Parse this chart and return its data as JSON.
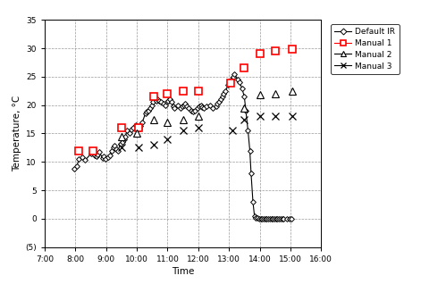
{
  "title": "",
  "xlabel": "Time",
  "ylabel": "Temperature, °C",
  "xlim": [
    7.0,
    16.0
  ],
  "ylim": [
    -5,
    35
  ],
  "yticks": [
    -5,
    0,
    5,
    10,
    15,
    20,
    25,
    30,
    35
  ],
  "ytick_labels": [
    "(5)",
    "0",
    "5",
    "10",
    "15",
    "20",
    "25",
    "30",
    "35"
  ],
  "xticks": [
    7.0,
    8.0,
    9.0,
    10.0,
    11.0,
    12.0,
    13.0,
    14.0,
    15.0,
    16.0
  ],
  "xtick_labels": [
    "7:00",
    "8:00",
    "9:00",
    "10:00",
    "11:00",
    "12:00",
    "13:00",
    "14:00",
    "15:00",
    "16:00"
  ],
  "ir_x": [
    7.95,
    8.05,
    8.12,
    8.22,
    8.32,
    8.52,
    8.62,
    8.68,
    8.73,
    8.78,
    8.88,
    8.93,
    8.98,
    9.08,
    9.13,
    9.18,
    9.23,
    9.28,
    9.33,
    9.38,
    9.48,
    9.53,
    9.58,
    9.63,
    9.68,
    9.78,
    9.83,
    9.88,
    9.98,
    10.03,
    10.08,
    10.13,
    10.18,
    10.28,
    10.33,
    10.38,
    10.43,
    10.48,
    10.53,
    10.63,
    10.68,
    10.73,
    10.78,
    10.88,
    10.93,
    10.98,
    11.03,
    11.08,
    11.13,
    11.18,
    11.23,
    11.33,
    11.43,
    11.48,
    11.53,
    11.58,
    11.63,
    11.68,
    11.78,
    11.83,
    11.88,
    11.98,
    12.03,
    12.08,
    12.13,
    12.18,
    12.28,
    12.38,
    12.48,
    12.58,
    12.63,
    12.68,
    12.73,
    12.78,
    12.83,
    12.88,
    12.98,
    13.03,
    13.08,
    13.13,
    13.18,
    13.28,
    13.35,
    13.42,
    13.5,
    13.55,
    13.62,
    13.68,
    13.72,
    13.78,
    13.83,
    13.88,
    13.93,
    13.98,
    14.03,
    14.08,
    14.13,
    14.18,
    14.23,
    14.28,
    14.33,
    14.38,
    14.43,
    14.48,
    14.53,
    14.58,
    14.63,
    14.68,
    14.73,
    14.78,
    14.88,
    14.98,
    15.03
  ],
  "ir_y": [
    8.8,
    9.3,
    10.5,
    10.8,
    10.3,
    11.5,
    11.2,
    11.0,
    11.3,
    11.8,
    10.7,
    11.0,
    10.5,
    10.8,
    11.2,
    12.0,
    12.5,
    12.8,
    12.3,
    12.0,
    13.2,
    13.5,
    14.0,
    14.5,
    15.5,
    15.0,
    15.7,
    16.0,
    16.5,
    16.2,
    15.8,
    16.3,
    17.0,
    18.5,
    18.8,
    19.0,
    19.5,
    20.0,
    20.5,
    20.8,
    21.0,
    20.7,
    20.5,
    20.3,
    20.0,
    20.5,
    20.8,
    21.0,
    20.5,
    19.8,
    19.5,
    20.0,
    19.5,
    19.8,
    20.0,
    20.2,
    19.8,
    19.5,
    19.0,
    18.8,
    19.0,
    19.5,
    19.8,
    20.0,
    19.7,
    19.5,
    19.8,
    20.0,
    19.5,
    19.8,
    20.2,
    20.5,
    21.0,
    21.5,
    22.0,
    22.5,
    23.5,
    24.0,
    24.5,
    25.0,
    25.5,
    24.5,
    24.0,
    23.0,
    21.5,
    19.0,
    15.5,
    12.0,
    8.0,
    3.0,
    0.5,
    0.2,
    0.1,
    0.05,
    0.0,
    0.0,
    0.0,
    0.0,
    0.0,
    0.0,
    0.0,
    0.0,
    0.0,
    0.0,
    0.0,
    0.0,
    0.0,
    0.0,
    0.0,
    0.0,
    0.0,
    0.0,
    0.0
  ],
  "manual1_x": [
    8.1,
    8.57,
    9.5,
    10.05,
    10.55,
    11.0,
    11.5,
    12.0,
    13.05,
    13.5,
    14.0,
    14.5,
    15.05
  ],
  "manual1_y": [
    12.0,
    12.0,
    16.0,
    16.0,
    21.5,
    22.0,
    22.5,
    22.5,
    23.8,
    26.5,
    29.0,
    29.5,
    29.8
  ],
  "manual2_x": [
    9.5,
    10.0,
    10.55,
    11.0,
    11.5,
    12.0,
    13.5,
    14.0,
    14.5,
    15.05
  ],
  "manual2_y": [
    14.5,
    15.0,
    17.5,
    17.0,
    17.5,
    18.0,
    19.5,
    21.8,
    22.0,
    22.5
  ],
  "manual3_x": [
    9.5,
    10.05,
    10.55,
    11.0,
    11.5,
    12.0,
    13.1,
    13.5,
    14.0,
    14.5,
    15.05
  ],
  "manual3_y": [
    12.5,
    12.5,
    13.0,
    14.0,
    15.5,
    16.0,
    15.5,
    17.5,
    18.0,
    18.0,
    18.0
  ],
  "ir_color": "black",
  "manual1_color": "red",
  "manual2_color": "black",
  "manual3_color": "black",
  "legend_labels": [
    "Default IR",
    "Manual 1",
    "Manual 2",
    "Manual 3"
  ],
  "figsize": [
    4.99,
    3.18
  ],
  "dpi": 100
}
